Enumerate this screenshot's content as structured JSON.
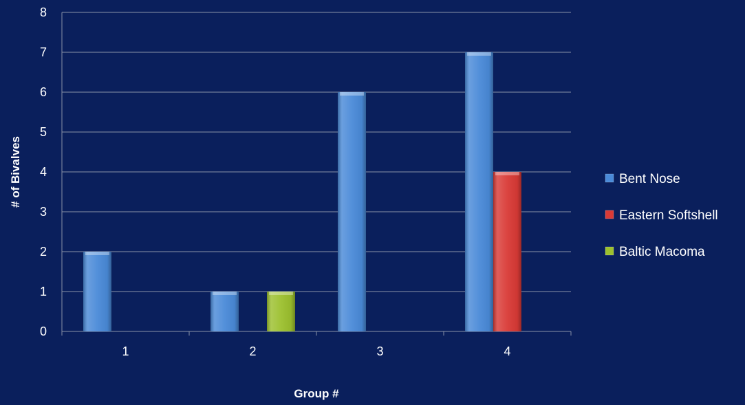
{
  "chart_data": {
    "type": "bar",
    "categories": [
      "1",
      "2",
      "3",
      "4"
    ],
    "series": [
      {
        "name": "Bent Nose",
        "values": [
          2,
          1,
          6,
          7
        ],
        "color": "#4a8ad8"
      },
      {
        "name": "Eastern Softshell",
        "values": [
          0,
          0,
          0,
          4
        ],
        "color": "#d93a36"
      },
      {
        "name": "Baltic Macoma",
        "values": [
          0,
          1,
          0,
          0
        ],
        "color": "#9cc02e"
      }
    ],
    "xlabel": "Group #",
    "ylabel": "# of Bivalves",
    "ylim": [
      0,
      8
    ],
    "yticks": [
      0,
      1,
      2,
      3,
      4,
      5,
      6,
      7,
      8
    ],
    "grid": true,
    "legend_position": "right"
  },
  "colors": {
    "background": "#0a1f5c",
    "gridline": "#8a93a8",
    "text": "#ffffff"
  }
}
